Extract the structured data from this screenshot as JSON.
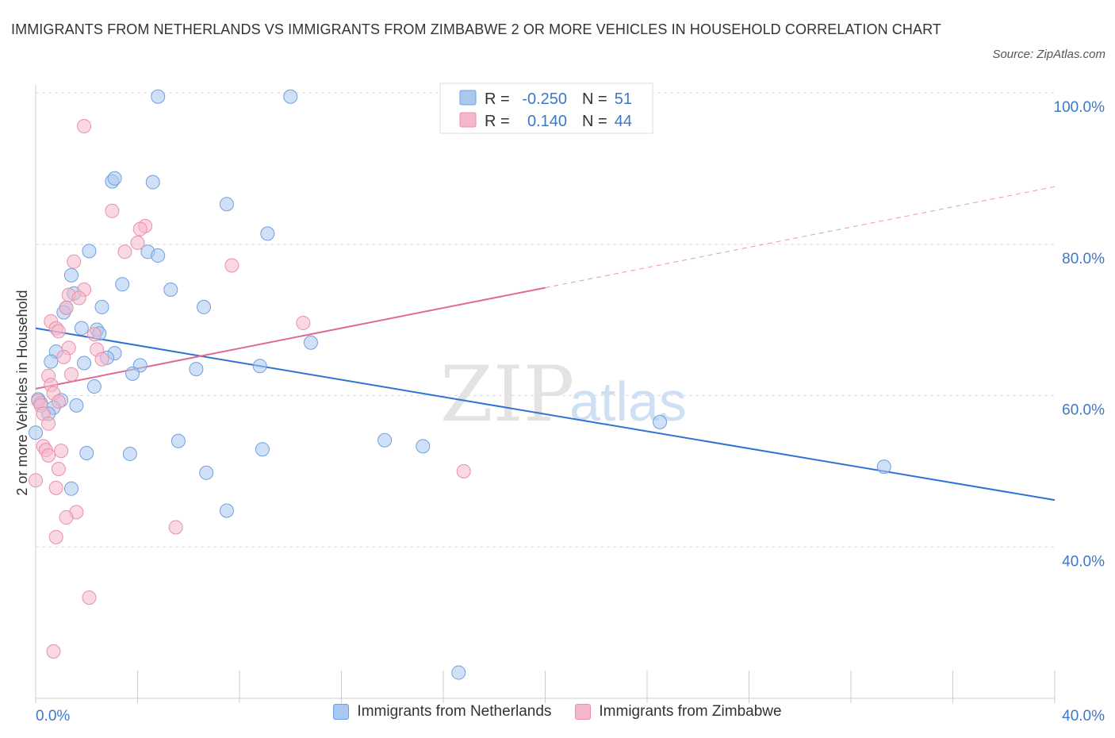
{
  "title": "IMMIGRANTS FROM NETHERLANDS VS IMMIGRANTS FROM ZIMBABWE 2 OR MORE VEHICLES IN HOUSEHOLD CORRELATION CHART",
  "source": "Source: ZipAtlas.com",
  "watermark": {
    "zip": "ZIP",
    "atlas": "atlas"
  },
  "colors": {
    "blue_fill": "#a9c8f0",
    "blue_stroke": "#6f9fe0",
    "blue_line": "#2e72d2",
    "pink_fill": "#f5b8cb",
    "pink_stroke": "#e890ac",
    "pink_line": "#e06a92",
    "axis_text": "#3c78c8",
    "grid": "#dddddd"
  },
  "legend": {
    "rows": [
      {
        "r_label": "R = ",
        "r_value": "-0.250",
        "n_label": "N = ",
        "n_value": "51",
        "color": "blue"
      },
      {
        "r_label": "R = ",
        "r_value": "0.140",
        "n_label": "N = ",
        "n_value": "44",
        "color": "pink"
      }
    ]
  },
  "chart_data": {
    "type": "scatter",
    "title": "IMMIGRANTS FROM NETHERLANDS VS IMMIGRANTS FROM ZIMBABWE 2 OR MORE VEHICLES IN HOUSEHOLD CORRELATION CHART",
    "ylabel": "2 or more Vehicles in Household",
    "xlabel": "",
    "xlim": [
      0,
      40
    ],
    "ylim": [
      20,
      100
    ],
    "x_tick_labels": [
      "0.0%",
      "40.0%"
    ],
    "y_tick_labels": [
      "40.0%",
      "60.0%",
      "80.0%",
      "100.0%"
    ],
    "y_ticks": [
      40,
      60,
      80,
      100
    ],
    "x_minor_ticks": [
      0,
      4,
      8,
      12,
      16,
      20,
      24,
      28,
      32,
      36,
      40
    ],
    "grid": true,
    "legend_position": "top-center",
    "series": [
      {
        "name": "Immigrants from Netherlands",
        "color": "blue",
        "r": -0.25,
        "n": 51,
        "trend": {
          "x": [
            0,
            40
          ],
          "y": [
            68.9,
            46.2
          ],
          "dashed_from": null
        },
        "points": [
          {
            "x": 4.8,
            "y": 99.5
          },
          {
            "x": 10.0,
            "y": 99.5
          },
          {
            "x": 3.0,
            "y": 88.3
          },
          {
            "x": 3.1,
            "y": 88.7
          },
          {
            "x": 4.6,
            "y": 88.2
          },
          {
            "x": 7.5,
            "y": 85.3
          },
          {
            "x": 9.1,
            "y": 81.4
          },
          {
            "x": 2.1,
            "y": 79.1
          },
          {
            "x": 4.4,
            "y": 79.0
          },
          {
            "x": 4.8,
            "y": 78.5
          },
          {
            "x": 1.4,
            "y": 75.9
          },
          {
            "x": 3.4,
            "y": 74.7
          },
          {
            "x": 5.3,
            "y": 74.0
          },
          {
            "x": 1.5,
            "y": 73.5
          },
          {
            "x": 1.2,
            "y": 71.6
          },
          {
            "x": 2.6,
            "y": 71.7
          },
          {
            "x": 6.6,
            "y": 71.7
          },
          {
            "x": 1.1,
            "y": 71.0
          },
          {
            "x": 1.8,
            "y": 68.9
          },
          {
            "x": 2.4,
            "y": 68.7
          },
          {
            "x": 2.5,
            "y": 68.2
          },
          {
            "x": 10.8,
            "y": 67.0
          },
          {
            "x": 0.8,
            "y": 65.8
          },
          {
            "x": 3.1,
            "y": 65.6
          },
          {
            "x": 2.8,
            "y": 65.0
          },
          {
            "x": 0.6,
            "y": 64.5
          },
          {
            "x": 1.9,
            "y": 64.3
          },
          {
            "x": 4.1,
            "y": 64.0
          },
          {
            "x": 8.8,
            "y": 63.9
          },
          {
            "x": 6.3,
            "y": 63.5
          },
          {
            "x": 3.8,
            "y": 62.9
          },
          {
            "x": 2.3,
            "y": 61.2
          },
          {
            "x": 0.1,
            "y": 59.5
          },
          {
            "x": 1.0,
            "y": 59.4
          },
          {
            "x": 0.2,
            "y": 59.0
          },
          {
            "x": 1.6,
            "y": 58.7
          },
          {
            "x": 0.7,
            "y": 58.4
          },
          {
            "x": 0.5,
            "y": 57.6
          },
          {
            "x": 24.5,
            "y": 56.5
          },
          {
            "x": 0.0,
            "y": 55.1
          },
          {
            "x": 5.6,
            "y": 54.0
          },
          {
            "x": 13.7,
            "y": 54.1
          },
          {
            "x": 15.2,
            "y": 53.3
          },
          {
            "x": 8.9,
            "y": 52.9
          },
          {
            "x": 2.0,
            "y": 52.4
          },
          {
            "x": 3.7,
            "y": 52.3
          },
          {
            "x": 33.3,
            "y": 50.6
          },
          {
            "x": 6.7,
            "y": 49.8
          },
          {
            "x": 1.4,
            "y": 47.7
          },
          {
            "x": 7.5,
            "y": 44.8
          },
          {
            "x": 16.6,
            "y": 23.4
          }
        ]
      },
      {
        "name": "Immigrants from Zimbabwe",
        "color": "pink",
        "r": 0.14,
        "n": 44,
        "trend": {
          "x": [
            0,
            40
          ],
          "y": [
            60.9,
            87.6
          ],
          "dashed_from": 20
        },
        "points": [
          {
            "x": 1.9,
            "y": 95.6
          },
          {
            "x": 3.0,
            "y": 84.4
          },
          {
            "x": 4.3,
            "y": 82.4
          },
          {
            "x": 4.1,
            "y": 82.0
          },
          {
            "x": 4.0,
            "y": 80.2
          },
          {
            "x": 3.5,
            "y": 79.0
          },
          {
            "x": 1.5,
            "y": 77.7
          },
          {
            "x": 7.7,
            "y": 77.2
          },
          {
            "x": 1.9,
            "y": 74.0
          },
          {
            "x": 1.3,
            "y": 73.3
          },
          {
            "x": 1.7,
            "y": 72.9
          },
          {
            "x": 1.2,
            "y": 71.6
          },
          {
            "x": 0.6,
            "y": 69.8
          },
          {
            "x": 10.5,
            "y": 69.6
          },
          {
            "x": 0.8,
            "y": 68.9
          },
          {
            "x": 0.9,
            "y": 68.5
          },
          {
            "x": 2.3,
            "y": 68.1
          },
          {
            "x": 1.3,
            "y": 66.3
          },
          {
            "x": 2.4,
            "y": 66.1
          },
          {
            "x": 1.1,
            "y": 65.1
          },
          {
            "x": 2.6,
            "y": 64.8
          },
          {
            "x": 0.5,
            "y": 62.6
          },
          {
            "x": 1.4,
            "y": 62.8
          },
          {
            "x": 0.6,
            "y": 61.4
          },
          {
            "x": 0.7,
            "y": 60.3
          },
          {
            "x": 0.1,
            "y": 59.3
          },
          {
            "x": 0.2,
            "y": 58.7
          },
          {
            "x": 0.3,
            "y": 57.6
          },
          {
            "x": 0.5,
            "y": 56.3
          },
          {
            "x": 0.3,
            "y": 53.3
          },
          {
            "x": 0.4,
            "y": 52.8
          },
          {
            "x": 1.0,
            "y": 52.7
          },
          {
            "x": 0.5,
            "y": 52.1
          },
          {
            "x": 0.9,
            "y": 50.3
          },
          {
            "x": 16.8,
            "y": 50.0
          },
          {
            "x": 0.0,
            "y": 48.8
          },
          {
            "x": 0.8,
            "y": 47.8
          },
          {
            "x": 1.6,
            "y": 44.6
          },
          {
            "x": 1.2,
            "y": 43.9
          },
          {
            "x": 5.5,
            "y": 42.6
          },
          {
            "x": 0.8,
            "y": 41.3
          },
          {
            "x": 2.1,
            "y": 33.3
          },
          {
            "x": 0.7,
            "y": 26.2
          },
          {
            "x": 0.9,
            "y": 59.2
          }
        ]
      }
    ]
  }
}
